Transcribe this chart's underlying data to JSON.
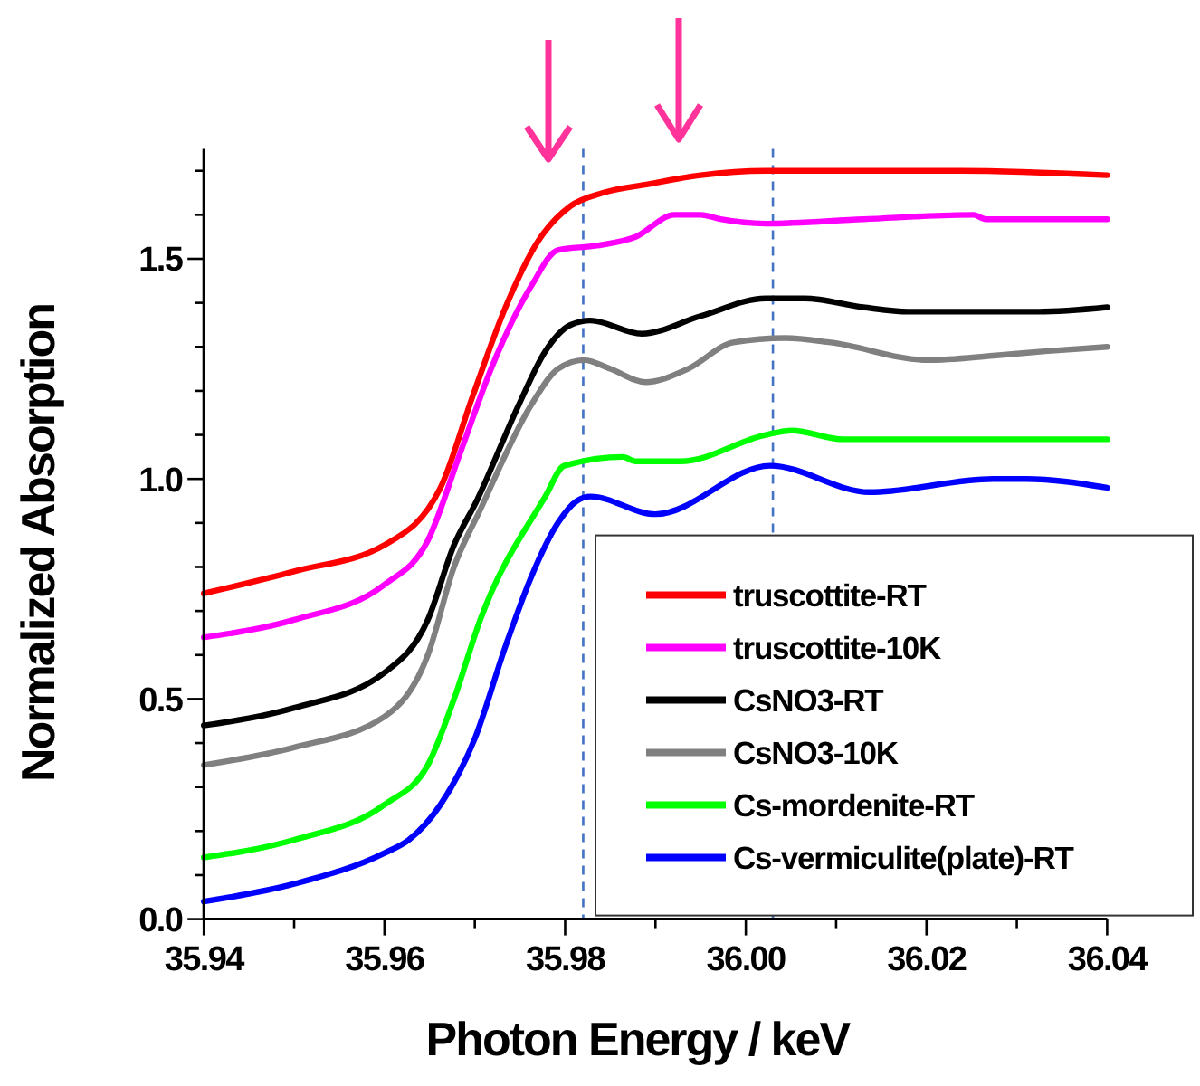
{
  "chart_data": {
    "type": "line",
    "xlabel": "Photon Energy / keV",
    "ylabel": "Normalized Absorption",
    "xlim": [
      35.94,
      36.04
    ],
    "ylim": [
      0,
      1.75
    ],
    "xticks": [
      35.94,
      {
        "value": 35.95,
        "label": null
      },
      35.96,
      {
        "value": 35.97,
        "label": null
      },
      35.98,
      {
        "value": 35.99,
        "label": null
      },
      "36.00",
      {
        "value": 36.01,
        "label": null
      },
      36.02,
      {
        "value": 36.03,
        "label": null
      },
      36.04
    ],
    "yticks": [
      {
        "value": 0,
        "label": "0.0"
      },
      {
        "value": 0.1,
        "label": null
      },
      {
        "value": 0.2,
        "label": null
      },
      {
        "value": 0.3,
        "label": null
      },
      {
        "value": 0.4,
        "label": null
      },
      0.5,
      {
        "value": 0.6,
        "label": null
      },
      {
        "value": 0.7,
        "label": null
      },
      {
        "value": 0.8,
        "label": null
      },
      {
        "value": 0.9,
        "label": null
      },
      {
        "value": 1,
        "label": "1.0"
      },
      {
        "value": 1.1,
        "label": null
      },
      {
        "value": 1.2,
        "label": null
      },
      {
        "value": 1.3,
        "label": null
      },
      {
        "value": 1.4,
        "label": null
      },
      1.5,
      {
        "value": 1.6,
        "label": null
      },
      {
        "value": 1.7,
        "label": null
      }
    ],
    "grid": false,
    "legend": "bottom right",
    "marker": "none",
    "line_style": "solid",
    "ref_lines": [
      {
        "axis": "x",
        "value": 35.982,
        "color": "#4472c4",
        "line_style": "dashed"
      },
      {
        "axis": "x",
        "value": 36.003,
        "color": "#4472c4",
        "line_style": "dashed"
      }
    ],
    "series": [
      {
        "name": "truscottite-RT",
        "color": "#ff0000",
        "x": [
          35.94,
          35.95,
          35.96,
          35.9662,
          35.9698,
          35.9734,
          35.977,
          35.9806,
          35.9842,
          35.9893,
          35.995,
          36.0022,
          36.0238,
          36.04
        ],
        "values": [
          0.74,
          0.79,
          0.85,
          0.98,
          1.19,
          1.39,
          1.54,
          1.62,
          1.65,
          1.67,
          1.69,
          1.7,
          1.7,
          1.69
        ]
      },
      {
        "name": "truscottite-10K",
        "color": "#ff00ff",
        "x": [
          35.94,
          35.95,
          35.96,
          35.9648,
          35.9684,
          35.972,
          35.9763,
          35.9792,
          35.9835,
          35.9878,
          35.9921,
          35.995,
          35.9972,
          36.0022,
          36.013,
          36.0252,
          36.0266,
          36.04
        ],
        "values": [
          0.64,
          0.68,
          0.76,
          0.86,
          1.06,
          1.26,
          1.44,
          1.52,
          1.53,
          1.55,
          1.6,
          1.6,
          1.59,
          1.58,
          1.59,
          1.6,
          1.59,
          1.59
        ]
      },
      {
        "name": "CsNO3-RT",
        "color": "#000000",
        "x": [
          35.94,
          35.95,
          35.96,
          35.9648,
          35.9677,
          35.9702,
          35.9749,
          35.9778,
          35.9806,
          35.9828,
          35.9885,
          35.995,
          36.0022,
          36.0065,
          36.013,
          36.018,
          36.0324,
          36.04
        ],
        "values": [
          0.44,
          0.48,
          0.56,
          0.68,
          0.85,
          0.95,
          1.17,
          1.29,
          1.35,
          1.36,
          1.33,
          1.37,
          1.41,
          1.41,
          1.39,
          1.38,
          1.38,
          1.39
        ]
      },
      {
        "name": "CsNO3-10K",
        "color": "#808080",
        "x": [
          35.94,
          35.95,
          35.96,
          35.9648,
          35.9677,
          35.9706,
          35.9763,
          35.9792,
          35.9821,
          35.985,
          35.9889,
          35.9936,
          35.9986,
          36.0044,
          36.0094,
          36.0202,
          36.0274,
          36.0331,
          36.04
        ],
        "values": [
          0.35,
          0.39,
          0.46,
          0.6,
          0.8,
          0.93,
          1.17,
          1.25,
          1.27,
          1.25,
          1.22,
          1.25,
          1.31,
          1.32,
          1.31,
          1.27,
          1.28,
          1.29,
          1.3
        ]
      },
      {
        "name": "Cs-mordenite-RT",
        "color": "#00ff00",
        "x": [
          35.94,
          35.95,
          35.96,
          35.9648,
          35.9677,
          35.9706,
          35.9778,
          35.9799,
          35.9864,
          35.9878,
          35.9928,
          36.0022,
          36.0051,
          36.0108,
          36.04
        ],
        "values": [
          0.14,
          0.18,
          0.26,
          0.35,
          0.5,
          0.68,
          0.96,
          1.03,
          1.05,
          1.04,
          1.04,
          1.1,
          1.11,
          1.09,
          1.09
        ]
      },
      {
        "name": "Cs-vermiculite(plate)-RT",
        "color": "#0000ff",
        "x": [
          35.94,
          35.95,
          35.96,
          35.9627,
          35.9662,
          35.97,
          35.9734,
          35.9763,
          35.9792,
          35.9813,
          35.9828,
          35.99,
          36.0027,
          36.0137,
          36.0274,
          36.031,
          36.04
        ],
        "values": [
          0.04,
          0.08,
          0.15,
          0.18,
          0.26,
          0.41,
          0.62,
          0.78,
          0.9,
          0.95,
          0.96,
          0.92,
          1.03,
          0.97,
          1.0,
          1.0,
          0.98
        ]
      }
    ]
  }
}
